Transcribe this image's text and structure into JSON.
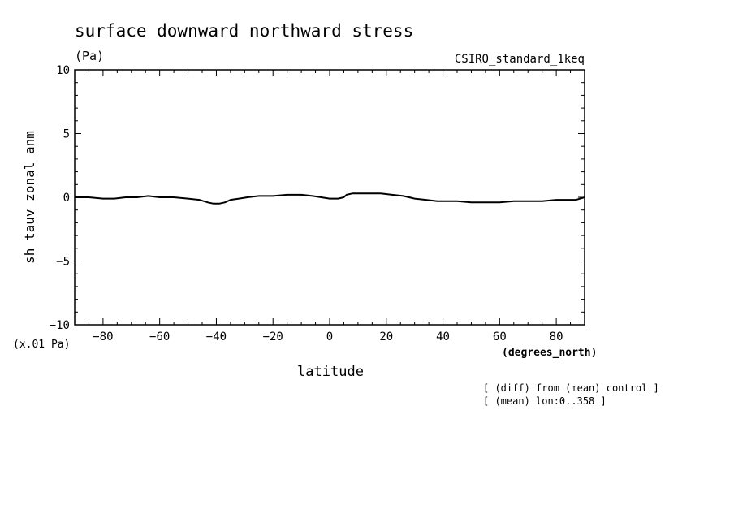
{
  "chart_data": {
    "type": "line",
    "title": "surface downward northward stress",
    "units": "(Pa)",
    "model_label": "CSIRO_standard_1keq",
    "ylabel": "sh_tauv_zonal_anm",
    "y_scale_note": "(x.01 Pa)",
    "xlabel": "latitude",
    "x_units": "(degrees_north)",
    "notes": [
      "[ (diff) from (mean) control ]",
      "[ (mean) lon:0..358 ]"
    ],
    "xlim": [
      -90,
      90
    ],
    "ylim": [
      -10,
      10
    ],
    "x_ticks": [
      -80,
      -60,
      -40,
      -20,
      0,
      20,
      40,
      60,
      80
    ],
    "x_tick_labels": [
      "−80",
      "−60",
      "−40",
      "−20",
      "0",
      "20",
      "40",
      "60",
      "80"
    ],
    "y_ticks": [
      -10,
      -5,
      0,
      5,
      10
    ],
    "y_tick_labels": [
      "−10",
      "−5",
      "0",
      "5",
      "10"
    ],
    "grid": false,
    "series": [
      {
        "x": [
          -90,
          -85,
          -80,
          -76,
          -72,
          -68,
          -64,
          -60,
          -55,
          -50,
          -46,
          -43,
          -41,
          -39,
          -37,
          -35,
          -32,
          -29,
          -25,
          -20,
          -15,
          -10,
          -6,
          -3,
          0,
          3,
          5,
          6,
          8,
          10,
          14,
          18,
          22,
          26,
          30,
          34,
          38,
          45,
          50,
          55,
          60,
          65,
          70,
          75,
          80,
          84,
          87,
          90
        ],
        "y": [
          0.0,
          0.0,
          -0.1,
          -0.1,
          0.0,
          0.0,
          0.1,
          0.0,
          0.0,
          -0.1,
          -0.2,
          -0.4,
          -0.5,
          -0.5,
          -0.4,
          -0.2,
          -0.1,
          0.0,
          0.1,
          0.1,
          0.2,
          0.2,
          0.1,
          0.0,
          -0.1,
          -0.1,
          0.0,
          0.2,
          0.3,
          0.3,
          0.3,
          0.3,
          0.2,
          0.1,
          -0.1,
          -0.2,
          -0.3,
          -0.3,
          -0.4,
          -0.4,
          -0.4,
          -0.3,
          -0.3,
          -0.3,
          -0.2,
          -0.2,
          -0.2,
          0.0
        ]
      }
    ]
  }
}
